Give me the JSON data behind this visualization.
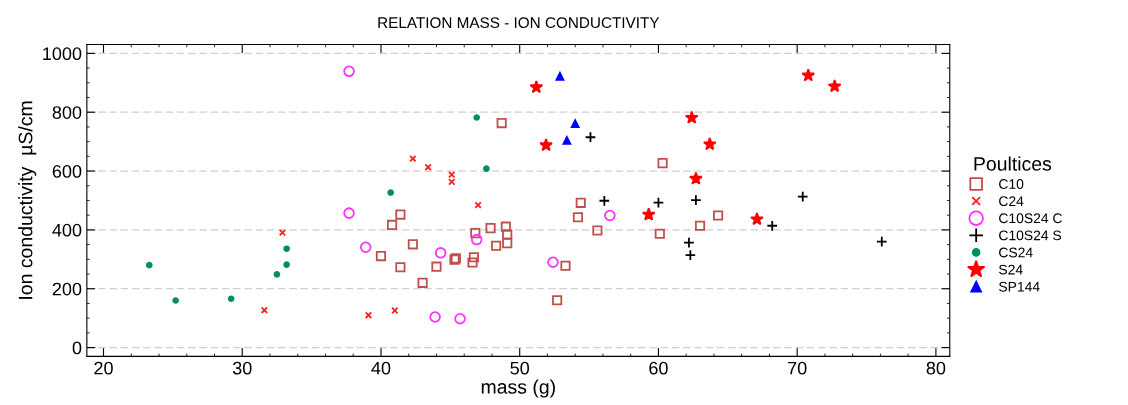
{
  "chart_data": {
    "type": "scatter",
    "title": "RELATION MASS - ION CONDUCTIVITY",
    "xlabel": "mass (g)",
    "ylabel": "Ion conductivity  µS/cm",
    "legend_title": "Poultices",
    "xlim": [
      18.8,
      81
    ],
    "xticks": [
      20,
      30,
      40,
      50,
      60,
      70,
      80
    ],
    "ylim": [
      -30,
      1030
    ],
    "yticks": [
      0,
      200,
      400,
      600,
      800,
      1000
    ],
    "grid": "y",
    "legend": "right",
    "series": [
      {
        "name": "C10",
        "color": "#c0504d",
        "marker": "square",
        "x": [
          41.4,
          40.8,
          42.3,
          41.4,
          43.0,
          44.0,
          45.3,
          45.4,
          46.7,
          46.6,
          46.8,
          47.9,
          48.3,
          48.7,
          49.0,
          49.1,
          49.1,
          52.7,
          53.3,
          54.2,
          54.4,
          55.6,
          60.3,
          60.1,
          63.0,
          64.3,
          40.0
        ],
        "values": [
          452,
          417,
          351,
          273,
          220,
          275,
          299,
          303,
          307,
          289,
          389,
          406,
          346,
          763,
          411,
          385,
          355,
          161,
          278,
          443,
          492,
          398,
          627,
          387,
          414,
          449,
          311
        ]
      },
      {
        "name": "C24",
        "color": "#ff2020",
        "marker": "cross",
        "x": [
          32.9,
          31.6,
          39.1,
          41.0,
          42.3,
          43.4,
          45.1,
          45.1,
          47.0
        ],
        "values": [
          391,
          127,
          110,
          126,
          642,
          613,
          588,
          563,
          484
        ]
      },
      {
        "name": "C10S24 C",
        "color": "#ff33ff",
        "marker": "circle",
        "x": [
          37.7,
          37.7,
          38.9,
          44.3,
          43.9,
          45.7,
          46.9,
          52.4,
          56.5
        ],
        "values": [
          939,
          457,
          341,
          322,
          104,
          98,
          367,
          290,
          449
        ]
      },
      {
        "name": "C10S24 S",
        "color": "#000000",
        "marker": "plus",
        "x": [
          55.1,
          56.1,
          60.0,
          62.2,
          62.3,
          62.7,
          68.2,
          70.4,
          76.1
        ],
        "values": [
          715,
          499,
          493,
          357,
          314,
          501,
          414,
          513,
          360
        ]
      },
      {
        "name": "CS24",
        "color": "#00905a",
        "marker": "dot",
        "x": [
          23.3,
          25.2,
          29.2,
          32.5,
          33.2,
          33.2,
          40.7,
          46.9,
          47.6
        ],
        "values": [
          280,
          160,
          166,
          249,
          336,
          282,
          527,
          782,
          608
        ]
      },
      {
        "name": "S24",
        "color": "#ff0000",
        "marker": "star",
        "x": [
          51.2,
          51.9,
          59.3,
          62.4,
          62.7,
          63.7,
          67.1,
          70.8,
          72.7
        ],
        "values": [
          885,
          688,
          452,
          781,
          574,
          691,
          436,
          925,
          888
        ]
      },
      {
        "name": "SP144",
        "color": "#0000ff",
        "marker": "triangle",
        "x": [
          52.9,
          54.0,
          53.4
        ],
        "values": [
          922,
          761,
          704
        ]
      }
    ]
  }
}
